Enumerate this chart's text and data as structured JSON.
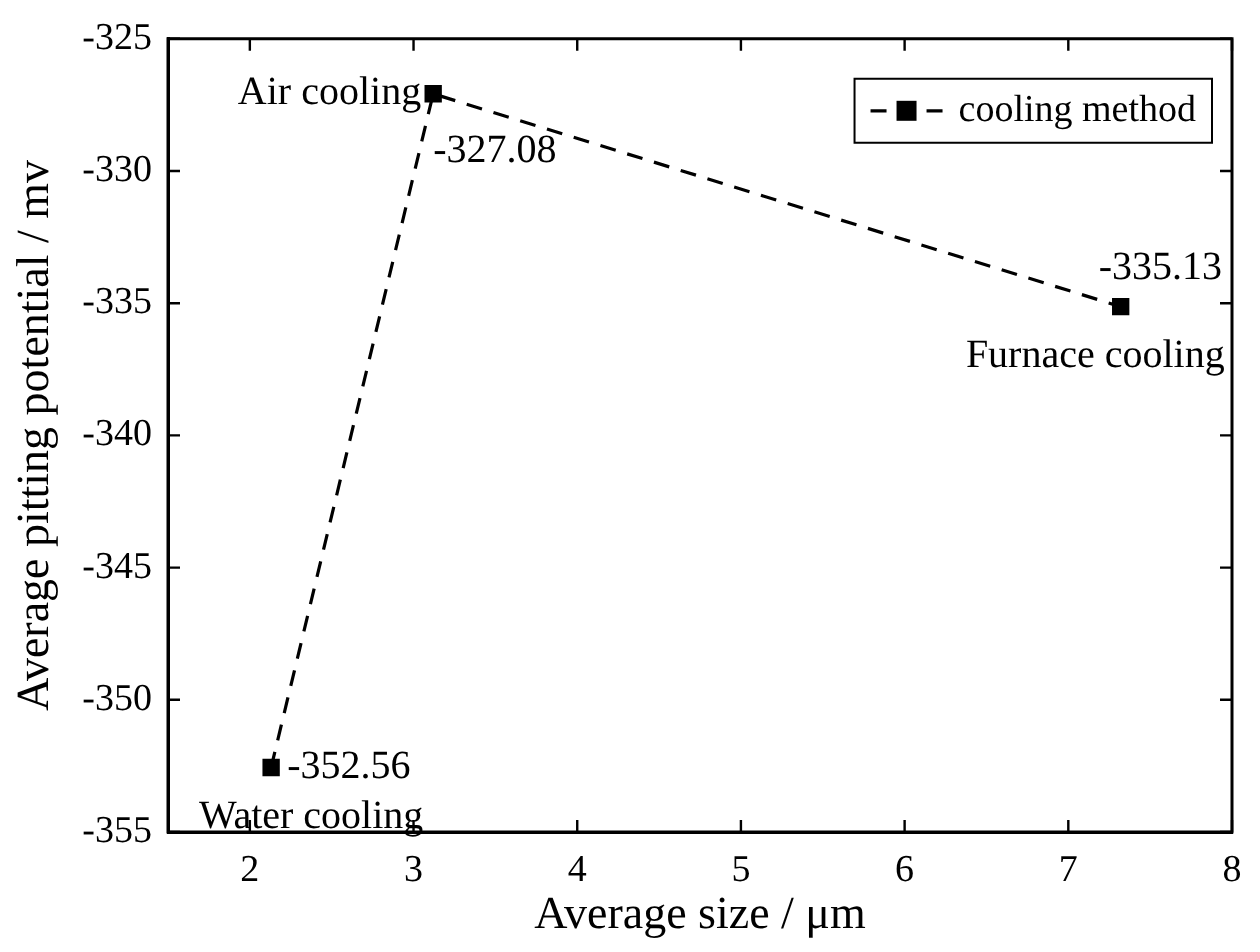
{
  "chart_data": {
    "type": "line",
    "xlabel": "Average size / μm",
    "ylabel": "Average pitting potential / mv",
    "xlim": [
      1.5,
      8
    ],
    "xticks": [
      2,
      3,
      4,
      5,
      6,
      7,
      8
    ],
    "ylim": [
      -355,
      -325
    ],
    "yticks": [
      -355,
      -350,
      -345,
      -340,
      -335,
      -330,
      -325
    ],
    "series": [
      {
        "name": "cooling method",
        "color": "#000000",
        "x": [
          2.13,
          3.12,
          7.32
        ],
        "values": [
          -352.56,
          -327.08,
          -335.13
        ]
      }
    ],
    "data_labels": true,
    "marker": "square",
    "line_style": "dashed",
    "legend": "top right",
    "grid": false,
    "annotations": [
      {
        "text": "Water cooling",
        "x": 2.13,
        "y": -352.56
      },
      {
        "text": "Air cooling",
        "x": 3.12,
        "y": -327.08
      },
      {
        "text": "Furnace cooling",
        "x": 7.32,
        "y": -335.13
      }
    ]
  }
}
